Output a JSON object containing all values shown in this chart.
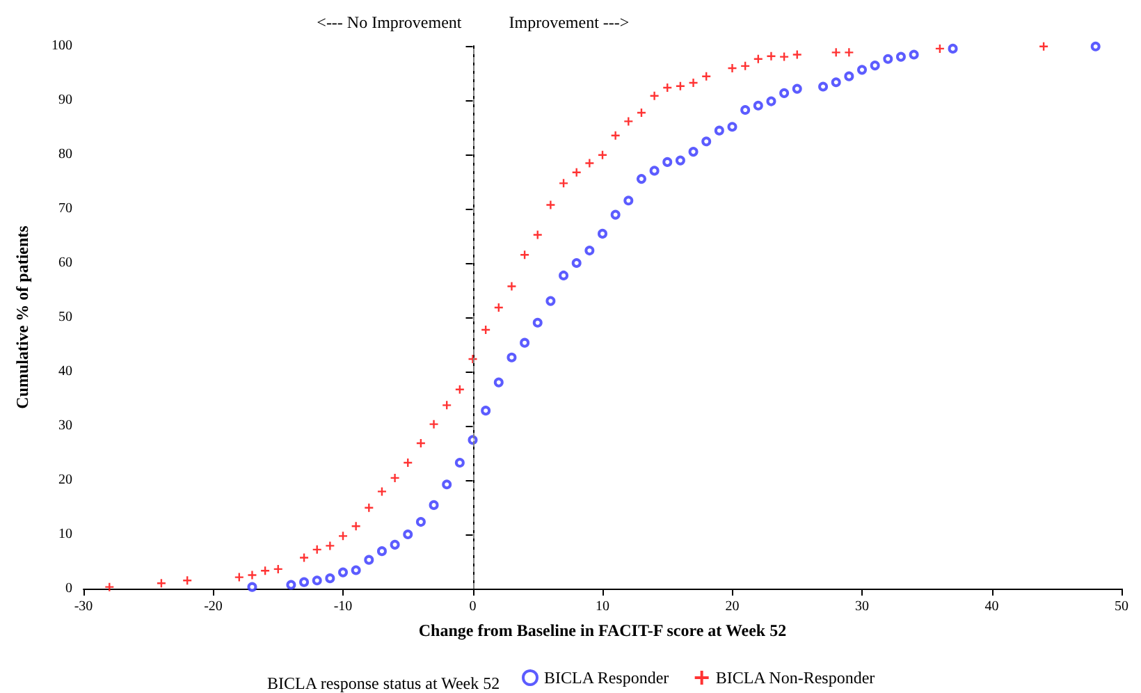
{
  "chart_data": {
    "type": "scatter",
    "xlabel": "Change from Baseline in FACIT-F score at Week 52",
    "ylabel": "Cumulative % of patients",
    "legend_title": "BICLA response status at Week 52",
    "legend": "bottom",
    "grid": false,
    "xlim": [
      -30,
      50
    ],
    "xticks": [
      -30,
      -20,
      -10,
      0,
      10,
      20,
      30,
      40,
      50
    ],
    "ylim": [
      0,
      100
    ],
    "yticks": [
      0,
      10,
      20,
      30,
      40,
      50,
      60,
      70,
      80,
      90,
      100
    ],
    "ref_lines": [
      {
        "axis": "x",
        "value": 0,
        "color": "#808080",
        "line_style": "dashed"
      }
    ],
    "annotations": [
      "<--- No Improvement",
      "Improvement --->"
    ],
    "series": [
      {
        "name": "BICLA Responder",
        "color": "#3333ff",
        "marker": "circle",
        "x": [
          -17,
          -14,
          -13,
          -12,
          -11,
          -10,
          -9,
          -8,
          -7,
          -6,
          -5,
          -4,
          -3,
          -2,
          -1,
          0,
          1,
          2,
          3,
          4,
          5,
          6,
          7,
          8,
          9,
          10,
          11,
          12,
          13,
          14,
          15,
          16,
          17,
          18,
          19,
          20,
          21,
          22,
          23,
          24,
          25,
          27,
          28,
          29,
          30,
          31,
          32,
          33,
          34,
          37,
          48
        ],
        "values": [
          0.3,
          0.7,
          1.2,
          1.5,
          1.9,
          3,
          3.4,
          5.3,
          6.9,
          8.1,
          10,
          12.3,
          15.4,
          19.2,
          23.2,
          27.4,
          32.8,
          38,
          42.6,
          45.3,
          49,
          53,
          57.7,
          60,
          62.3,
          65.4,
          68.9,
          71.5,
          75.5,
          77,
          78.6,
          78.9,
          80.5,
          82.4,
          84.4,
          85.1,
          88.2,
          89,
          89.8,
          91.3,
          92.1,
          92.5,
          93.3,
          94.4,
          95.6,
          96.4,
          97.6,
          98,
          98.4,
          99.5,
          99.9
        ]
      },
      {
        "name": "BICLA Non-Responder",
        "color": "#ff0000",
        "marker": "cross",
        "x": [
          -28,
          -24,
          -22,
          -18,
          -17,
          -16,
          -15,
          -13,
          -12,
          -11,
          -10,
          -9,
          -8,
          -7,
          -6,
          -5,
          -4,
          -3,
          -2,
          -1,
          0,
          1,
          2,
          3,
          4,
          5,
          6,
          7,
          8,
          9,
          10,
          11,
          12,
          13,
          14,
          15,
          16,
          17,
          18,
          20,
          21,
          22,
          23,
          24,
          25,
          28,
          29,
          36,
          44
        ],
        "values": [
          0.3,
          1,
          1.5,
          2.1,
          2.5,
          3.3,
          3.6,
          5.7,
          7.2,
          7.9,
          9.7,
          11.5,
          14.9,
          17.9,
          20.4,
          23.2,
          26.8,
          30.3,
          33.8,
          36.7,
          42.3,
          47.7,
          51.8,
          55.7,
          61.5,
          65.2,
          70.7,
          74.7,
          76.7,
          78.4,
          79.9,
          83.5,
          86.1,
          87.7,
          90.8,
          92.3,
          92.6,
          93.2,
          94.4,
          95.9,
          96.3,
          97.6,
          98.1,
          98,
          98.4,
          98.8,
          98.8,
          99.5,
          99.9
        ]
      }
    ]
  }
}
